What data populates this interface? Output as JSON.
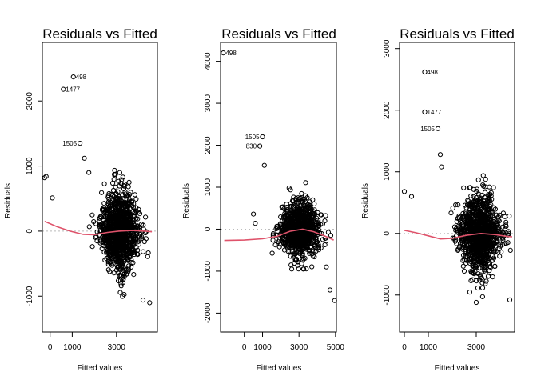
{
  "chart_data": [
    {
      "type": "scatter",
      "title": "Residuals vs Fitted",
      "xlabel": "Fitted values",
      "ylabel": "Residuals",
      "xlim": [
        -350,
        4850
      ],
      "ylim": [
        -1550,
        2900
      ],
      "xticks": [
        0,
        1000,
        3000
      ],
      "yticks": [
        -1000,
        0,
        1000,
        2000
      ],
      "zero_line": true,
      "smooth_color": "#df536b",
      "smooth": [
        [
          -250,
          150
        ],
        [
          300,
          70
        ],
        [
          900,
          0
        ],
        [
          1500,
          -50
        ],
        [
          2000,
          -55
        ],
        [
          2600,
          -20
        ],
        [
          3100,
          0
        ],
        [
          3700,
          10
        ],
        [
          4300,
          0
        ],
        [
          4600,
          -10
        ]
      ],
      "cloud": {
        "x_center": 3150,
        "x_spread": 430,
        "y_spread": 330,
        "n": 1100,
        "y_clip": [
          -1050,
          950
        ]
      },
      "outliers": [
        {
          "label": "498",
          "x": 1050,
          "y": 2370
        },
        {
          "label": "1477",
          "x": 600,
          "y": 2180
        },
        {
          "label": "1505",
          "x": 1350,
          "y": 1350
        },
        {
          "label": "",
          "x": -250,
          "y": 820
        },
        {
          "label": "",
          "x": -180,
          "y": 840
        },
        {
          "label": "",
          "x": 100,
          "y": 510
        },
        {
          "label": "",
          "x": 1550,
          "y": 1120
        },
        {
          "label": "",
          "x": 1750,
          "y": 900
        },
        {
          "label": "",
          "x": 4500,
          "y": -1100
        },
        {
          "label": "",
          "x": 4200,
          "y": -1060
        }
      ],
      "label_side": {
        "498": "right",
        "1477": "right",
        "1505": "left"
      }
    },
    {
      "type": "scatter",
      "title": "Residuals vs Fitted",
      "xlabel": "Fitted values",
      "ylabel": "Residuals",
      "xlim": [
        -1300,
        5050
      ],
      "ylim": [
        -2450,
        4450
      ],
      "xticks": [
        0,
        1000,
        3000,
        5000
      ],
      "yticks": [
        -2000,
        -1000,
        0,
        1000,
        2000,
        3000,
        4000
      ],
      "zero_line": true,
      "smooth_color": "#df536b",
      "smooth": [
        [
          -1100,
          -270
        ],
        [
          0,
          -260
        ],
        [
          1000,
          -230
        ],
        [
          1800,
          -170
        ],
        [
          2500,
          -50
        ],
        [
          3200,
          0
        ],
        [
          3800,
          -60
        ],
        [
          4400,
          -160
        ],
        [
          4900,
          -260
        ]
      ],
      "cloud": {
        "x_center": 3050,
        "x_spread": 520,
        "y_spread": 360,
        "n": 900,
        "y_clip": [
          -950,
          1150
        ]
      },
      "outliers": [
        {
          "label": "498",
          "x": -1150,
          "y": 4200
        },
        {
          "label": "1505",
          "x": 1000,
          "y": 2200
        },
        {
          "label": "830",
          "x": 850,
          "y": 1980
        },
        {
          "label": "",
          "x": 500,
          "y": 360
        },
        {
          "label": "",
          "x": 600,
          "y": 140
        },
        {
          "label": "",
          "x": 1100,
          "y": 1520
        },
        {
          "label": "",
          "x": 4700,
          "y": -1450
        },
        {
          "label": "",
          "x": 4950,
          "y": -1700
        },
        {
          "label": "",
          "x": 4500,
          "y": -900
        }
      ],
      "label_side": {
        "498": "right",
        "1505": "left",
        "830": "left"
      }
    },
    {
      "type": "scatter",
      "title": "Residuals vs Fitted",
      "xlabel": "Fitted values",
      "ylabel": "Residuals",
      "xlim": [
        -200,
        4600
      ],
      "ylim": [
        -1600,
        3100
      ],
      "xticks": [
        0,
        1000,
        3000
      ],
      "yticks": [
        -1000,
        0,
        1000,
        2000,
        3000
      ],
      "zero_line": true,
      "smooth_color": "#df536b",
      "smooth": [
        [
          0,
          50
        ],
        [
          500,
          10
        ],
        [
          1000,
          -40
        ],
        [
          1500,
          -90
        ],
        [
          2000,
          -80
        ],
        [
          2600,
          -30
        ],
        [
          3200,
          0
        ],
        [
          3800,
          -20
        ],
        [
          4300,
          -50
        ],
        [
          4500,
          -55
        ]
      ],
      "cloud": {
        "x_center": 3150,
        "x_spread": 430,
        "y_spread": 330,
        "n": 1100,
        "y_clip": [
          -1050,
          1000
        ]
      },
      "outliers": [
        {
          "label": "498",
          "x": 850,
          "y": 2620
        },
        {
          "label": "1477",
          "x": 850,
          "y": 1970
        },
        {
          "label": "1505",
          "x": 1400,
          "y": 1700
        },
        {
          "label": "",
          "x": 0,
          "y": 680
        },
        {
          "label": "",
          "x": 300,
          "y": 600
        },
        {
          "label": "",
          "x": 1500,
          "y": 1280
        },
        {
          "label": "",
          "x": 1550,
          "y": 1080
        },
        {
          "label": "",
          "x": 4400,
          "y": -1080
        },
        {
          "label": "",
          "x": 3000,
          "y": -1120
        }
      ],
      "label_side": {
        "498": "right",
        "1477": "right",
        "1505": "left"
      }
    }
  ]
}
